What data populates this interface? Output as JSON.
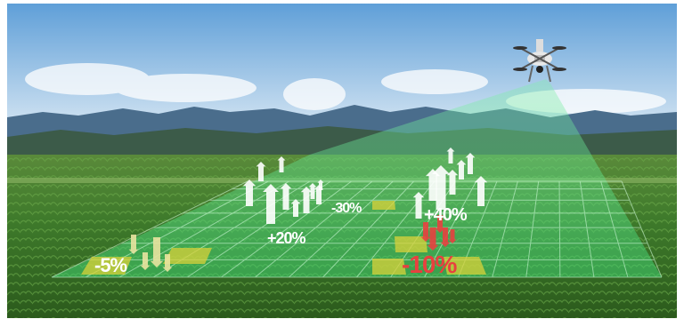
{
  "scene": {
    "labels": [
      {
        "id": "minus5",
        "text": "-5%",
        "color": "#ffffff",
        "direction": "down"
      },
      {
        "id": "plus20",
        "text": "+20%",
        "color": "#ffffff",
        "direction": "up"
      },
      {
        "id": "minus30",
        "text": "-30%",
        "color": "#ffffff",
        "direction": "none"
      },
      {
        "id": "plus40",
        "text": "+40%",
        "color": "#ffffff",
        "direction": "up"
      },
      {
        "id": "minus10",
        "text": "-10%",
        "color": "#e8403f",
        "direction": "down"
      }
    ],
    "colors": {
      "sky_top": "#5f9fd8",
      "sky_bottom": "#d8e8f3",
      "mountains": "#4a6f8f",
      "field": "#3f7d2c",
      "scan_overlay": "#45d47a",
      "yellow_cell": "#d9d23a",
      "up_arrow": "#ffffff",
      "down_arrow": "#e9e3a0",
      "red_arrow": "#e8403f"
    },
    "icons": [
      "drone-icon",
      "up-arrow-icon",
      "down-arrow-icon"
    ]
  }
}
